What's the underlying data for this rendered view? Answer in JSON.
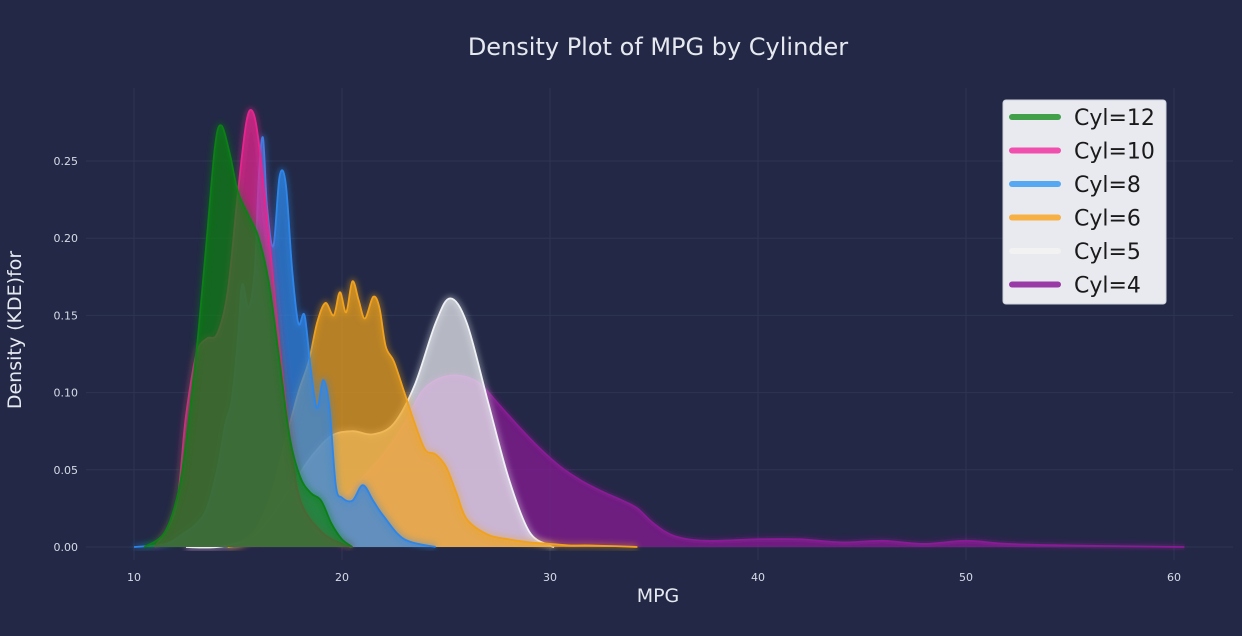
{
  "chart_data": {
    "type": "area",
    "title": "Density Plot of MPG by Cylinder",
    "xlabel": "MPG",
    "ylabel": "Density (KDE)for",
    "xlim": [
      8,
      63
    ],
    "ylim": [
      -0.01,
      0.295
    ],
    "xticks": [
      10,
      20,
      30,
      40,
      50,
      60
    ],
    "yticks": [
      0.0,
      0.05,
      0.1,
      0.15,
      0.2,
      0.25
    ],
    "ytick_labels": [
      "0.00",
      "0.05",
      "0.10",
      "0.15",
      "0.20",
      "0.25"
    ],
    "grid": true,
    "legend_position": "top-right",
    "series": [
      {
        "name": "Cyl=4",
        "color": "#8b1a96",
        "legend_color": "#9a3aa6",
        "points": [
          [
            12.5,
            0
          ],
          [
            14,
            0.001
          ],
          [
            16,
            0.003
          ],
          [
            18,
            0.01
          ],
          [
            19,
            0.02
          ],
          [
            20,
            0.032
          ],
          [
            21,
            0.045
          ],
          [
            22,
            0.06
          ],
          [
            23,
            0.08
          ],
          [
            23.8,
            0.1
          ],
          [
            24.5,
            0.108
          ],
          [
            25.2,
            0.111
          ],
          [
            26,
            0.11
          ],
          [
            26.7,
            0.105
          ],
          [
            27.5,
            0.093
          ],
          [
            28.5,
            0.078
          ],
          [
            29.5,
            0.064
          ],
          [
            30.5,
            0.052
          ],
          [
            31.5,
            0.043
          ],
          [
            32.5,
            0.036
          ],
          [
            33.5,
            0.03
          ],
          [
            34.2,
            0.025
          ],
          [
            35,
            0.015
          ],
          [
            36,
            0.007
          ],
          [
            37.5,
            0.004
          ],
          [
            40,
            0.005
          ],
          [
            42,
            0.005
          ],
          [
            44,
            0.003
          ],
          [
            46,
            0.004
          ],
          [
            48,
            0.002
          ],
          [
            50,
            0.004
          ],
          [
            52,
            0.002
          ],
          [
            55,
            0.001
          ],
          [
            60.5,
            0
          ]
        ]
      },
      {
        "name": "Cyl=5",
        "color": "#eef0f4",
        "legend_color": "#f2f2f2",
        "points": [
          [
            12.5,
            0
          ],
          [
            14,
            0
          ],
          [
            15.5,
            0.005
          ],
          [
            16.5,
            0.018
          ],
          [
            17.5,
            0.038
          ],
          [
            18.5,
            0.058
          ],
          [
            19.5,
            0.072
          ],
          [
            20.5,
            0.075
          ],
          [
            21.5,
            0.073
          ],
          [
            22.5,
            0.08
          ],
          [
            23.5,
            0.105
          ],
          [
            24.5,
            0.145
          ],
          [
            25.2,
            0.161
          ],
          [
            26,
            0.145
          ],
          [
            27,
            0.095
          ],
          [
            28,
            0.045
          ],
          [
            29,
            0.01
          ],
          [
            30,
            0.001
          ],
          [
            30.2,
            0
          ]
        ]
      },
      {
        "name": "Cyl=6",
        "color": "#f0a21c",
        "legend_color": "#f7b044",
        "points": [
          [
            14.5,
            0
          ],
          [
            15.5,
            0.005
          ],
          [
            16.5,
            0.03
          ],
          [
            17.3,
            0.07
          ],
          [
            17.9,
            0.1
          ],
          [
            18.4,
            0.12
          ],
          [
            18.8,
            0.145
          ],
          [
            19.2,
            0.158
          ],
          [
            19.6,
            0.15
          ],
          [
            19.9,
            0.165
          ],
          [
            20.2,
            0.152
          ],
          [
            20.5,
            0.172
          ],
          [
            20.8,
            0.16
          ],
          [
            21.1,
            0.148
          ],
          [
            21.5,
            0.162
          ],
          [
            21.8,
            0.155
          ],
          [
            22.1,
            0.13
          ],
          [
            22.5,
            0.12
          ],
          [
            23,
            0.1
          ],
          [
            23.5,
            0.08
          ],
          [
            24,
            0.063
          ],
          [
            24.5,
            0.06
          ],
          [
            25,
            0.052
          ],
          [
            25.5,
            0.035
          ],
          [
            26,
            0.018
          ],
          [
            27,
            0.008
          ],
          [
            28,
            0.005
          ],
          [
            29,
            0.003
          ],
          [
            30,
            0.002
          ],
          [
            31,
            0.001
          ],
          [
            32,
            0.001
          ],
          [
            34.2,
            0
          ]
        ]
      },
      {
        "name": "Cyl=8",
        "color": "#2f86e8",
        "legend_color": "#56a8f2",
        "points": [
          [
            10,
            0
          ],
          [
            11.5,
            0.002
          ],
          [
            12.3,
            0.008
          ],
          [
            13,
            0.015
          ],
          [
            13.5,
            0.025
          ],
          [
            14,
            0.05
          ],
          [
            14.4,
            0.08
          ],
          [
            14.7,
            0.095
          ],
          [
            15,
            0.135
          ],
          [
            15.2,
            0.17
          ],
          [
            15.5,
            0.155
          ],
          [
            15.8,
            0.178
          ],
          [
            16,
            0.24
          ],
          [
            16.2,
            0.265
          ],
          [
            16.4,
            0.22
          ],
          [
            16.7,
            0.195
          ],
          [
            17,
            0.24
          ],
          [
            17.3,
            0.235
          ],
          [
            17.6,
            0.18
          ],
          [
            17.9,
            0.145
          ],
          [
            18.2,
            0.15
          ],
          [
            18.5,
            0.115
          ],
          [
            18.8,
            0.09
          ],
          [
            19.1,
            0.108
          ],
          [
            19.4,
            0.09
          ],
          [
            19.7,
            0.04
          ],
          [
            20,
            0.032
          ],
          [
            20.5,
            0.03
          ],
          [
            21,
            0.04
          ],
          [
            21.5,
            0.03
          ],
          [
            22,
            0.02
          ],
          [
            23,
            0.005
          ],
          [
            24.5,
            0
          ]
        ]
      },
      {
        "name": "Cyl=10",
        "color": "#e8258f",
        "legend_color": "#f04fae",
        "points": [
          [
            11,
            0
          ],
          [
            12,
            0.025
          ],
          [
            12.5,
            0.085
          ],
          [
            13,
            0.125
          ],
          [
            13.5,
            0.135
          ],
          [
            14,
            0.138
          ],
          [
            14.5,
            0.165
          ],
          [
            15,
            0.23
          ],
          [
            15.4,
            0.275
          ],
          [
            15.7,
            0.282
          ],
          [
            16,
            0.262
          ],
          [
            16.5,
            0.2
          ],
          [
            17,
            0.13
          ],
          [
            17.5,
            0.07
          ],
          [
            18,
            0.03
          ],
          [
            19,
            0.01
          ],
          [
            20,
            0.002
          ],
          [
            20.5,
            0
          ]
        ]
      },
      {
        "name": "Cyl=12",
        "color": "#0e7f12",
        "legend_color": "#43a04a",
        "points": [
          [
            10.5,
            0
          ],
          [
            11.5,
            0.01
          ],
          [
            12.2,
            0.04
          ],
          [
            12.7,
            0.09
          ],
          [
            13.1,
            0.14
          ],
          [
            13.5,
            0.2
          ],
          [
            13.9,
            0.26
          ],
          [
            14.2,
            0.273
          ],
          [
            14.6,
            0.255
          ],
          [
            15,
            0.23
          ],
          [
            15.5,
            0.215
          ],
          [
            16,
            0.2
          ],
          [
            16.5,
            0.17
          ],
          [
            17,
            0.12
          ],
          [
            17.5,
            0.07
          ],
          [
            18,
            0.045
          ],
          [
            18.5,
            0.035
          ],
          [
            19,
            0.03
          ],
          [
            19.5,
            0.015
          ],
          [
            20,
            0.005
          ],
          [
            20.5,
            0
          ]
        ]
      }
    ],
    "legend_order": [
      "Cyl=12",
      "Cyl=10",
      "Cyl=8",
      "Cyl=6",
      "Cyl=5",
      "Cyl=4"
    ]
  }
}
